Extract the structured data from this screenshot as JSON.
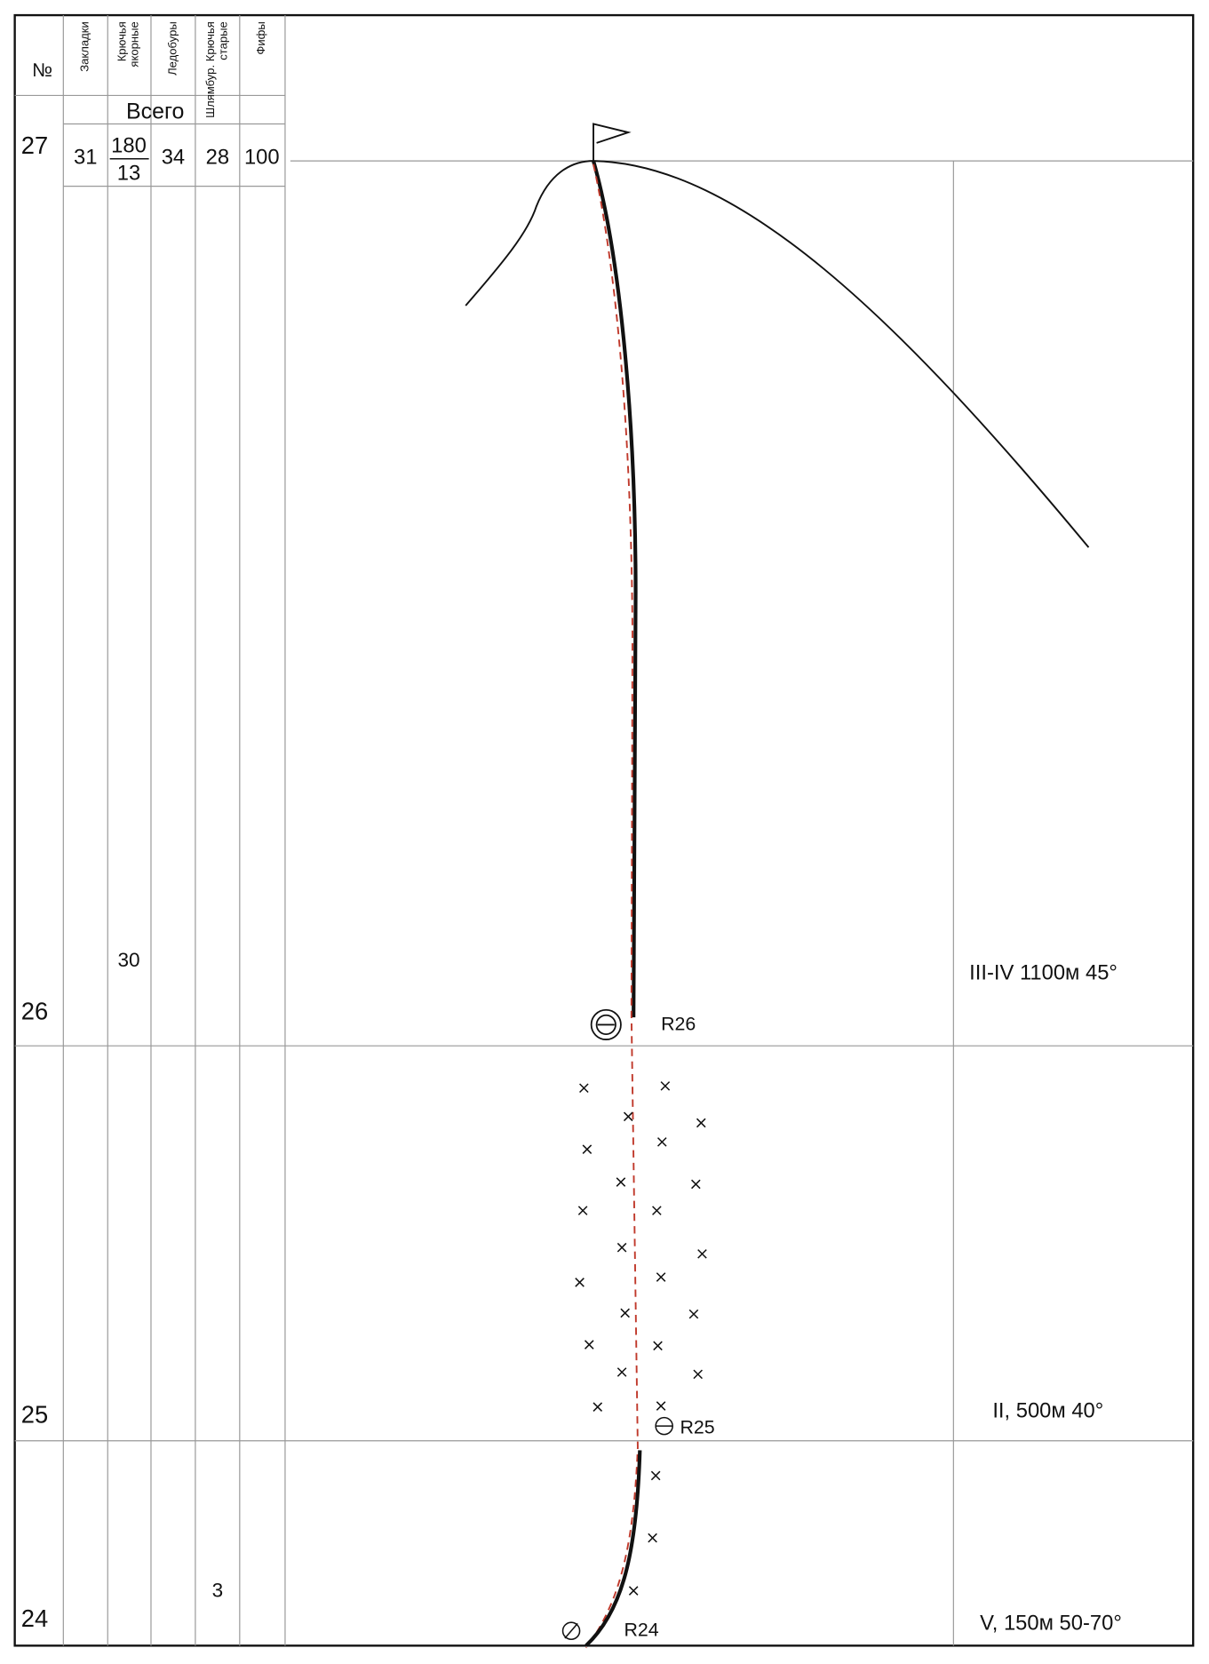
{
  "table": {
    "header": {
      "number": "№",
      "columns": [
        [
          "Закладки"
        ],
        [
          "Крючья",
          "якорные"
        ],
        [
          "Ледобуры"
        ],
        [
          "Шлямбур. Крючья",
          "старые"
        ],
        [
          "Фифы"
        ]
      ]
    },
    "total_label": "Всего",
    "totals": [
      "31",
      {
        "top": "180",
        "bottom": "13"
      },
      "34",
      "28",
      "100"
    ],
    "pitches": [
      "27",
      "26",
      "25",
      "24"
    ],
    "cells": [
      {
        "column": 1,
        "text": "30"
      },
      {
        "column": 3,
        "text": "3"
      }
    ]
  },
  "sections": [
    "III-IV  1100м  45°",
    "II,  500м   40°",
    "V,  150м   50-70°"
  ],
  "belays": [
    "R26",
    "R25",
    "R24"
  ]
}
